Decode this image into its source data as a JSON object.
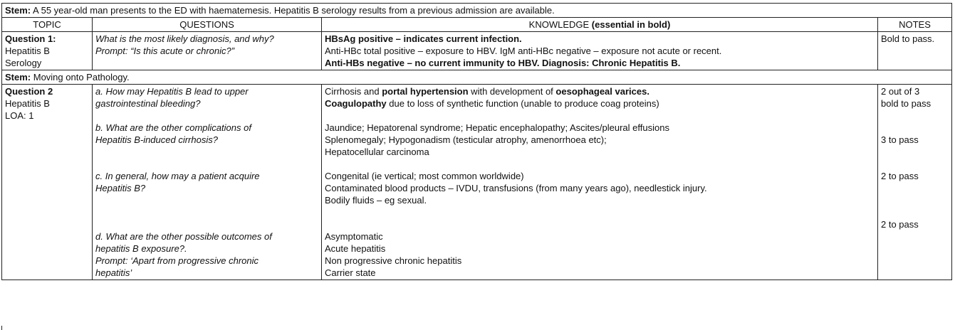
{
  "stem1": {
    "label": "Stem:",
    "text": " A 55 year-old man presents to the ED with haematemesis. Hepatitis B serology results from a previous admission are available."
  },
  "headers": {
    "topic": "TOPIC",
    "questions": "QUESTIONS",
    "knowledge_plain": "KNOWLEDGE ",
    "knowledge_bold": "(essential in bold)",
    "notes": "NOTES"
  },
  "q1": {
    "topic": [
      "Question 1:",
      "Hepatitis B",
      "Serology"
    ],
    "questions": [
      "What is the most likely diagnosis, and why?",
      "Prompt: “Is this acute or chronic?”"
    ],
    "knowledge": [
      "HBsAg positive – indicates current infection.",
      "Anti-HBc total positive – exposure to HBV. IgM anti-HBc negative – exposure not acute or recent.",
      "Anti-HBs negative – no current immunity to HBV.   Diagnosis: Chronic Hepatitis B."
    ],
    "notes": "Bold to pass."
  },
  "stem2": {
    "label": "Stem:",
    "text": " Moving onto Pathology."
  },
  "q2": {
    "topic": [
      "Question 2",
      "Hepatitis B",
      "LOA:  1"
    ],
    "a": {
      "question": [
        "a. How may Hepatitis B lead to upper",
        "gastrointestinal bleeding?"
      ],
      "k1_pre": "Cirrhosis and ",
      "k1_b1": "portal hypertension",
      "k1_mid": " with development of ",
      "k1_b2": "oesophageal varices.",
      "k2_b": "Coagulopathy",
      "k2_rest": " due to loss of synthetic function (unable to produce coag proteins)",
      "notes": [
        "2 out of 3",
        "bold to pass"
      ]
    },
    "b": {
      "question": [
        "b. What are the other complications of",
        "Hepatitis B-induced cirrhosis?"
      ],
      "knowledge": [
        "Jaundice; Hepatorenal syndrome; Hepatic encephalopathy; Ascites/pleural effusions",
        "Splenomegaly; Hypogonadism (testicular atrophy, amenorrhoea etc);",
        "Hepatocellular carcinoma"
      ],
      "notes": "3 to pass"
    },
    "c": {
      "question": [
        "c. In general, how may a patient acquire",
        "Hepatitis B?"
      ],
      "knowledge": [
        "Congenital (ie vertical; most common worldwide)",
        "Contaminated blood products – IVDU, transfusions (from many years ago), needlestick injury.",
        "Bodily fluids – eg sexual."
      ],
      "notes": "2 to pass"
    },
    "d": {
      "question": [
        "d. What are the other possible outcomes of",
        "hepatitis B exposure?.",
        "Prompt: ‘Apart from progressive chronic",
        "hepatitis’"
      ],
      "knowledge": [
        "Asymptomatic",
        "Acute hepatitis",
        "Non progressive chronic hepatitis",
        "Carrier state"
      ],
      "notes": "2 to pass"
    }
  }
}
